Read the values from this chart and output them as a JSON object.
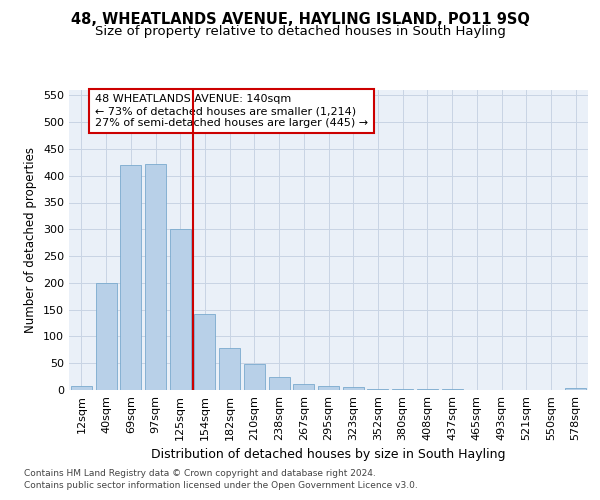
{
  "title": "48, WHEATLANDS AVENUE, HAYLING ISLAND, PO11 9SQ",
  "subtitle": "Size of property relative to detached houses in South Hayling",
  "xlabel": "Distribution of detached houses by size in South Hayling",
  "ylabel": "Number of detached properties",
  "footnote1": "Contains HM Land Registry data © Crown copyright and database right 2024.",
  "footnote2": "Contains public sector information licensed under the Open Government Licence v3.0.",
  "annotation_line1": "48 WHEATLANDS AVENUE: 140sqm",
  "annotation_line2": "← 73% of detached houses are smaller (1,214)",
  "annotation_line3": "27% of semi-detached houses are larger (445) →",
  "categories": [
    "12sqm",
    "40sqm",
    "69sqm",
    "97sqm",
    "125sqm",
    "154sqm",
    "182sqm",
    "210sqm",
    "238sqm",
    "267sqm",
    "295sqm",
    "323sqm",
    "352sqm",
    "380sqm",
    "408sqm",
    "437sqm",
    "465sqm",
    "493sqm",
    "521sqm",
    "550sqm",
    "578sqm"
  ],
  "values": [
    8,
    200,
    420,
    422,
    300,
    142,
    78,
    48,
    24,
    12,
    8,
    5,
    2,
    2,
    1,
    1,
    0,
    0,
    0,
    0,
    3
  ],
  "bar_color": "#b8d0e8",
  "bar_edge_color": "#7aaace",
  "vline_color": "#cc0000",
  "vline_position": 4.5,
  "annotation_box_color": "#cc0000",
  "ylim": [
    0,
    560
  ],
  "yticks": [
    0,
    50,
    100,
    150,
    200,
    250,
    300,
    350,
    400,
    450,
    500,
    550
  ],
  "grid_color": "#c8d4e4",
  "background_color": "#eaf0f8",
  "title_fontsize": 10.5,
  "subtitle_fontsize": 9.5,
  "xlabel_fontsize": 9,
  "ylabel_fontsize": 8.5,
  "tick_fontsize": 8,
  "annotation_fontsize": 8,
  "footnote_fontsize": 6.5
}
